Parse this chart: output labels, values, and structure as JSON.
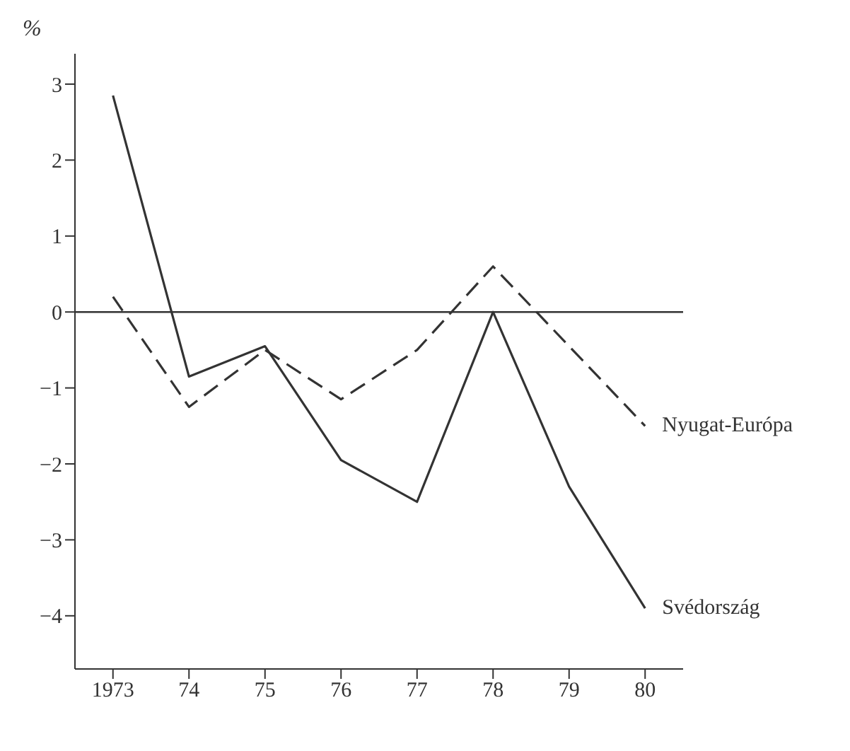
{
  "chart_data": {
    "type": "line",
    "ylabel": "%",
    "categories": [
      "1973",
      "74",
      "75",
      "76",
      "77",
      "78",
      "79",
      "80"
    ],
    "series": [
      {
        "name": "Svédország",
        "color": "#333333",
        "line_style": "solid",
        "values": [
          2.85,
          -0.85,
          -0.45,
          -1.95,
          -2.5,
          0,
          -2.3,
          -3.9
        ]
      },
      {
        "name": "Nyugat-Európa",
        "color": "#333333",
        "line_style": "dashed",
        "values": [
          0.2,
          -1.25,
          -0.5,
          -1.15,
          -0.5,
          0.6,
          -0.45,
          -1.5
        ]
      }
    ],
    "ylim": [
      -4.7,
      3.4
    ],
    "yticks": [
      -4,
      -3,
      -2,
      -1,
      0,
      1,
      2,
      3
    ],
    "ref_lines": [
      {
        "axis": "y",
        "value": 0,
        "color": "#333333"
      }
    ],
    "grid": false,
    "legend": false,
    "marker": "none"
  }
}
